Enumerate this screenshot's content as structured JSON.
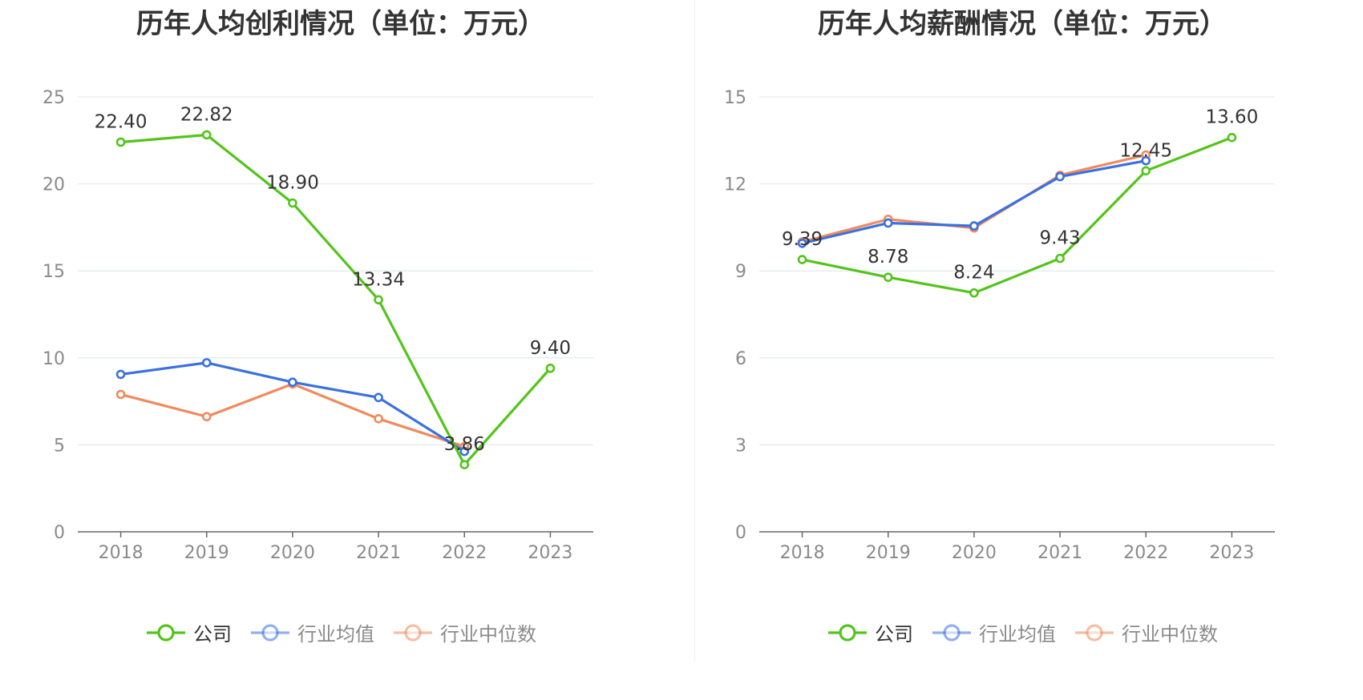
{
  "chart_data": [
    {
      "type": "line",
      "title": "历年人均创利情况（单位：万元）",
      "categories": [
        "2018",
        "2019",
        "2020",
        "2021",
        "2022",
        "2023"
      ],
      "ylim": [
        0,
        25
      ],
      "yticks": [
        0,
        5,
        10,
        15,
        20,
        25
      ],
      "grid": true,
      "legend_position": "bottom",
      "series": [
        {
          "name": "公司",
          "color": "#52c41a",
          "values": [
            22.4,
            22.82,
            18.9,
            13.34,
            3.86,
            9.4
          ],
          "labels": [
            "22.40",
            "22.82",
            "18.90",
            "13.34",
            "3.86",
            "9.40"
          ]
        },
        {
          "name": "行业均值",
          "color": "#3a70e0",
          "values": [
            9.05,
            9.72,
            8.6,
            7.72,
            4.62,
            null
          ]
        },
        {
          "name": "行业中位数",
          "color": "#f08a5d",
          "values": [
            7.9,
            6.62,
            8.5,
            6.5,
            4.9,
            null
          ]
        }
      ]
    },
    {
      "type": "line",
      "title": "历年人均薪酬情况（单位：万元）",
      "categories": [
        "2018",
        "2019",
        "2020",
        "2021",
        "2022",
        "2023"
      ],
      "ylim": [
        0,
        15
      ],
      "yticks": [
        0,
        3,
        6,
        9,
        12,
        15
      ],
      "grid": true,
      "legend_position": "bottom",
      "series": [
        {
          "name": "公司",
          "color": "#52c41a",
          "values": [
            9.39,
            8.78,
            8.24,
            9.43,
            12.45,
            13.6
          ],
          "labels": [
            "9.39",
            "8.78",
            "8.24",
            "9.43",
            "12.45",
            "13.60"
          ]
        },
        {
          "name": "行业均值",
          "color": "#3a70e0",
          "values": [
            9.95,
            10.65,
            10.55,
            12.25,
            12.8,
            null
          ]
        },
        {
          "name": "行业中位数",
          "color": "#f08a5d",
          "values": [
            10.0,
            10.78,
            10.48,
            12.3,
            13.0,
            null
          ]
        }
      ]
    }
  ],
  "legend": {
    "items": [
      {
        "label": "公司",
        "color": "#52c41a",
        "active": true
      },
      {
        "label": "行业均值",
        "color": "#3a70e0",
        "active": false
      },
      {
        "label": "行业中位数",
        "color": "#f08a5d",
        "active": false
      }
    ]
  }
}
